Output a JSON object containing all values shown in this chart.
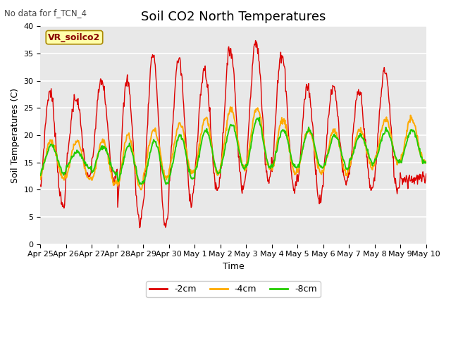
{
  "title": "Soil CO2 North Temperatures",
  "top_left_text": "No data for f_TCN_4",
  "annotation_text": "VR_soilco2",
  "xlabel": "Time",
  "ylabel": "Soil Temperatures (C)",
  "ylim": [
    0,
    40
  ],
  "yticks": [
    0,
    5,
    10,
    15,
    20,
    25,
    30,
    35,
    40
  ],
  "background_color": "#e8e8e8",
  "fig_background": "#ffffff",
  "line_colors": {
    "neg2cm": "#dd0000",
    "neg4cm": "#ffaa00",
    "neg8cm": "#22cc00"
  },
  "legend_labels": [
    "-2cm",
    "-4cm",
    "-8cm"
  ],
  "x_tick_labels": [
    "Apr 25",
    "Apr 26",
    "Apr 27",
    "Apr 28",
    "Apr 29",
    "Apr 30",
    "May 1",
    "May 2",
    "May 3",
    "May 4",
    "May 5",
    "May 6",
    "May 7",
    "May 8",
    "May 9",
    "May 10"
  ],
  "num_days": 15,
  "pts_per_day": 48,
  "title_fontsize": 13,
  "axis_label_fontsize": 9,
  "tick_fontsize": 8,
  "legend_fontsize": 9,
  "annotation_fontsize": 9
}
